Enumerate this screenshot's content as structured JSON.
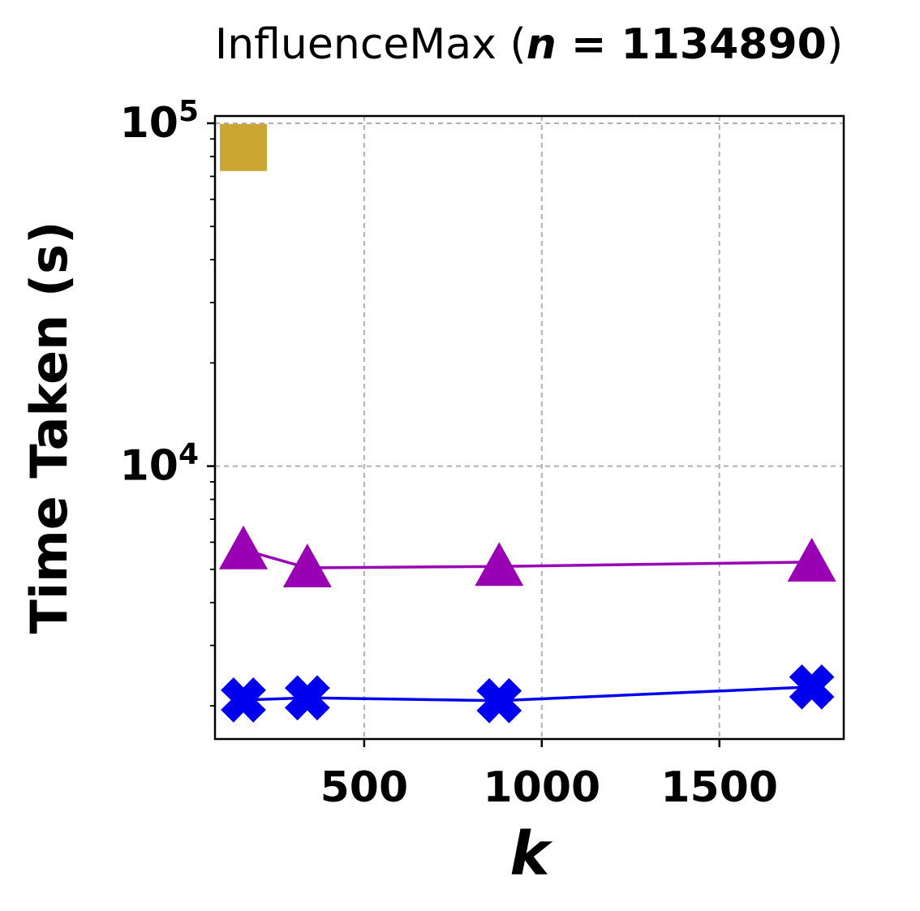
{
  "chart_data": {
    "type": "scatter",
    "title": {
      "prefix": "InfluenceMax (",
      "var": "n",
      "eq": " = ",
      "value": "1134890",
      "suffix": ")"
    },
    "xlabel": "k",
    "ylabel": "Time Taken (s)",
    "xlim": [
      80,
      1850
    ],
    "ylim": [
      1600,
      105000
    ],
    "yscale": "log",
    "grid": true,
    "xticks": [
      {
        "value": 500,
        "label": "500"
      },
      {
        "value": 1000,
        "label": "1000"
      },
      {
        "value": 1500,
        "label": "1500"
      }
    ],
    "yticks": [
      {
        "value": 10000,
        "base": "10",
        "exp": "4"
      },
      {
        "value": 100000,
        "base": "10",
        "exp": "5"
      }
    ],
    "series": [
      {
        "marker": "square",
        "color": "#cca633",
        "line": false,
        "x": [
          160
        ],
        "y": [
          85000
        ]
      },
      {
        "marker": "triangle",
        "color": "#9900b3",
        "line": true,
        "x": [
          160,
          340,
          880,
          1760
        ],
        "y": [
          5700,
          5050,
          5100,
          5250
        ]
      },
      {
        "marker": "x",
        "color": "#0000ee",
        "line": true,
        "x": [
          160,
          340,
          880,
          1760
        ],
        "y": [
          2080,
          2110,
          2070,
          2270
        ]
      }
    ]
  }
}
